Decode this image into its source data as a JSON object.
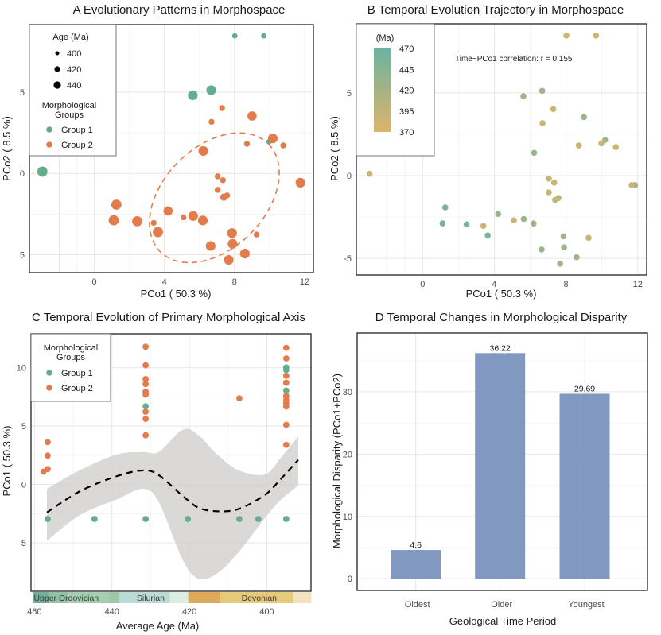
{
  "colors": {
    "group1": "#66ad8f",
    "group2": "#e27c4c",
    "bar": "#7a92bd",
    "age_high": "#6cb3a0",
    "age_low": "#dcb56b",
    "ribbon": "#cfcccb"
  },
  "chart_data": [
    {
      "panel": "A",
      "type": "scatter",
      "title": "A   Evolutionary Patterns in Morphospace",
      "xlabel": "PCo1 ( 50.3 %)",
      "ylabel": "PCo2 ( 8.5 %)",
      "xlim": [
        -3.7,
        12.5
      ],
      "ylim": [
        -6.1,
        9.15
      ],
      "xticks": [
        0,
        4,
        8,
        12
      ],
      "xtick_labels": [
        "0",
        "4",
        "8",
        "12"
      ],
      "yticks": [
        5,
        0,
        -5
      ],
      "ytick_labels": [
        "5",
        "0",
        "5"
      ],
      "grid": true,
      "legend": {
        "position": "top-left",
        "size_title": "Age (Ma)",
        "size_entries": [
          {
            "age": 400,
            "label": "400"
          },
          {
            "age": 420,
            "label": "420"
          },
          {
            "age": 440,
            "label": "440"
          }
        ],
        "group_title_line1": "Morphological",
        "group_title_line2": "Groups",
        "groups": [
          "Group 1",
          "Group 2"
        ]
      },
      "ellipse": {
        "group": "Group 2",
        "style": "dashed"
      },
      "points": [
        {
          "x": 8.02,
          "y": 8.46,
          "group": "Group 1",
          "age": 395
        },
        {
          "x": 9.67,
          "y": 8.46,
          "group": "Group 1",
          "age": 395
        },
        {
          "x": 5.62,
          "y": 4.8,
          "group": "Group 1",
          "age": 440
        },
        {
          "x": 6.67,
          "y": 5.12,
          "group": "Group 1",
          "age": 440
        },
        {
          "x": 9.97,
          "y": 1.95,
          "group": "Group 1",
          "age": 395
        },
        {
          "x": -2.96,
          "y": 0.11,
          "group": "Group 1",
          "age": 445
        },
        {
          "x": 7.29,
          "y": 4.02,
          "group": "Group 2",
          "age": 400
        },
        {
          "x": 9.0,
          "y": 3.53,
          "group": "Group 2",
          "age": 435
        },
        {
          "x": 6.69,
          "y": 3.17,
          "group": "Group 2",
          "age": 400
        },
        {
          "x": 10.18,
          "y": 2.15,
          "group": "Group 2",
          "age": 440
        },
        {
          "x": 8.71,
          "y": 1.82,
          "group": "Group 2",
          "age": 400
        },
        {
          "x": 10.78,
          "y": 1.72,
          "group": "Group 2",
          "age": 400
        },
        {
          "x": 6.22,
          "y": 1.38,
          "group": "Group 2",
          "age": 440
        },
        {
          "x": 7.04,
          "y": -0.18,
          "group": "Group 2",
          "age": 400
        },
        {
          "x": 7.34,
          "y": -0.42,
          "group": "Group 2",
          "age": 400
        },
        {
          "x": 7.04,
          "y": -1.01,
          "group": "Group 2",
          "age": 400
        },
        {
          "x": 7.39,
          "y": -1.46,
          "group": "Group 2",
          "age": 415
        },
        {
          "x": 7.58,
          "y": -1.35,
          "group": "Group 2",
          "age": 400
        },
        {
          "x": 11.76,
          "y": -0.57,
          "group": "Group 2",
          "age": 440
        },
        {
          "x": 1.26,
          "y": -1.92,
          "group": "Group 2",
          "age": 445
        },
        {
          "x": 1.11,
          "y": -2.88,
          "group": "Group 2",
          "age": 445
        },
        {
          "x": 2.45,
          "y": -2.94,
          "group": "Group 2",
          "age": 445
        },
        {
          "x": 3.39,
          "y": -3.04,
          "group": "Group 2",
          "age": 400
        },
        {
          "x": 3.63,
          "y": -3.61,
          "group": "Group 2",
          "age": 445
        },
        {
          "x": 4.21,
          "y": -2.31,
          "group": "Group 2",
          "age": 435
        },
        {
          "x": 5.09,
          "y": -2.7,
          "group": "Group 2",
          "age": 400
        },
        {
          "x": 5.64,
          "y": -2.62,
          "group": "Group 2",
          "age": 440
        },
        {
          "x": 6.19,
          "y": -2.89,
          "group": "Group 2",
          "age": 440
        },
        {
          "x": 7.86,
          "y": -3.67,
          "group": "Group 2",
          "age": 440
        },
        {
          "x": 9.26,
          "y": -3.76,
          "group": "Group 2",
          "age": 400
        },
        {
          "x": 7.89,
          "y": -4.33,
          "group": "Group 2",
          "age": 440
        },
        {
          "x": 6.64,
          "y": -4.46,
          "group": "Group 2",
          "age": 440
        },
        {
          "x": 8.59,
          "y": -4.93,
          "group": "Group 2",
          "age": 440
        },
        {
          "x": 7.67,
          "y": -5.32,
          "group": "Group 2",
          "age": 440
        }
      ]
    },
    {
      "panel": "B",
      "type": "scatter",
      "title": "B   Temporal Evolution Trajectory in Morphospace",
      "xlabel": "PCo1 ( 50.3 %)",
      "ylabel": "PCo2 ( 8.5 %)",
      "xlim": [
        -3.7,
        12.5
      ],
      "ylim": [
        -6.0,
        9.17
      ],
      "xticks": [
        0,
        4,
        8,
        12
      ],
      "xtick_labels": [
        "0",
        "4",
        "8",
        "12"
      ],
      "yticks": [
        5,
        0,
        -5
      ],
      "ytick_labels": [
        "5",
        "0",
        "-5"
      ],
      "grid": true,
      "annotation": "Time−PCo1 correlation: r = 0.155",
      "legend": {
        "position": "top-left",
        "title": "(Ma)",
        "ticks": [
          "470",
          "445",
          "420",
          "395",
          "370"
        ],
        "range": [
          370,
          470
        ]
      },
      "points": [
        {
          "x": 8.02,
          "y": 8.46,
          "age": 380
        },
        {
          "x": 9.67,
          "y": 8.46,
          "age": 380
        },
        {
          "x": 5.62,
          "y": 4.8,
          "age": 428
        },
        {
          "x": 6.67,
          "y": 5.12,
          "age": 428
        },
        {
          "x": 7.29,
          "y": 4.02,
          "age": 385
        },
        {
          "x": 9.0,
          "y": 3.53,
          "age": 428
        },
        {
          "x": 6.69,
          "y": 3.17,
          "age": 385
        },
        {
          "x": 10.18,
          "y": 2.15,
          "age": 428
        },
        {
          "x": 9.97,
          "y": 1.95,
          "age": 385
        },
        {
          "x": 8.71,
          "y": 1.82,
          "age": 385
        },
        {
          "x": 10.78,
          "y": 1.72,
          "age": 385
        },
        {
          "x": 6.22,
          "y": 1.38,
          "age": 430
        },
        {
          "x": 7.04,
          "y": -0.18,
          "age": 390
        },
        {
          "x": 7.34,
          "y": -0.42,
          "age": 390
        },
        {
          "x": 7.04,
          "y": -1.01,
          "age": 390
        },
        {
          "x": 7.39,
          "y": -1.46,
          "age": 395
        },
        {
          "x": 7.58,
          "y": -1.35,
          "age": 395
        },
        {
          "x": 11.85,
          "y": -0.57,
          "age": 420
        },
        {
          "x": 11.66,
          "y": -0.57,
          "age": 390
        },
        {
          "x": -2.96,
          "y": 0.11,
          "age": 385
        },
        {
          "x": 1.26,
          "y": -1.92,
          "age": 455
        },
        {
          "x": 1.11,
          "y": -2.88,
          "age": 458
        },
        {
          "x": 2.45,
          "y": -2.94,
          "age": 455
        },
        {
          "x": 3.39,
          "y": -3.04,
          "age": 385
        },
        {
          "x": 3.63,
          "y": -3.61,
          "age": 458
        },
        {
          "x": 4.21,
          "y": -2.31,
          "age": 432
        },
        {
          "x": 5.09,
          "y": -2.7,
          "age": 390
        },
        {
          "x": 5.64,
          "y": -2.62,
          "age": 428
        },
        {
          "x": 6.19,
          "y": -2.89,
          "age": 428
        },
        {
          "x": 7.86,
          "y": -3.67,
          "age": 425
        },
        {
          "x": 9.26,
          "y": -3.76,
          "age": 385
        },
        {
          "x": 7.89,
          "y": -4.33,
          "age": 425
        },
        {
          "x": 6.64,
          "y": -4.46,
          "age": 428
        },
        {
          "x": 8.59,
          "y": -4.93,
          "age": 428
        },
        {
          "x": 7.67,
          "y": -5.32,
          "age": 428
        }
      ]
    },
    {
      "panel": "C",
      "type": "scatter",
      "title": "C   Temporal Evolution of Primary Morphological Axis",
      "xlabel": "Average Age (Ma)",
      "ylabel": "PCo1 ( 50.3 %)",
      "xlim": [
        460.9,
        388.6
      ],
      "ylim": [
        -9.15,
        12.9
      ],
      "xticks": [
        460,
        440,
        420,
        400
      ],
      "xtick_labels": [
        "460",
        "440",
        "420",
        "400"
      ],
      "yticks": [
        10,
        5,
        0,
        -5
      ],
      "ytick_labels": [
        "10",
        "5",
        "0",
        "5"
      ],
      "grid": true,
      "legend": {
        "position": "top-left",
        "title_line1": "Morphological",
        "title_line2": "Groups",
        "groups": [
          "Group 1",
          "Group 2"
        ]
      },
      "group1": [
        [
          456.6,
          -2.96
        ],
        [
          444.5,
          -2.96
        ],
        [
          431.3,
          -2.96
        ],
        [
          431.3,
          6.7
        ],
        [
          420.4,
          -2.96
        ],
        [
          407.1,
          -2.96
        ],
        [
          402.2,
          -2.96
        ],
        [
          395.0,
          -2.96
        ],
        [
          395.0,
          8.03
        ],
        [
          395.0,
          9.8
        ],
        [
          395.0,
          10.02
        ]
      ],
      "group2": [
        [
          457.7,
          1.09
        ],
        [
          456.6,
          1.31
        ],
        [
          456.6,
          2.47
        ],
        [
          456.6,
          3.62
        ],
        [
          431.3,
          11.79
        ],
        [
          431.3,
          10.2
        ],
        [
          431.3,
          9.03
        ],
        [
          431.3,
          8.6
        ],
        [
          431.3,
          7.94
        ],
        [
          431.3,
          7.69
        ],
        [
          431.3,
          6.22
        ],
        [
          431.3,
          5.61
        ],
        [
          431.3,
          4.21
        ],
        [
          407.1,
          7.38
        ],
        [
          395.0,
          11.7
        ],
        [
          395.0,
          10.79
        ],
        [
          395.0,
          9.3
        ],
        [
          395.0,
          8.71
        ],
        [
          395.0,
          7.58
        ],
        [
          395.0,
          7.26
        ],
        [
          395.0,
          6.95
        ],
        [
          395.0,
          6.67
        ],
        [
          395.0,
          5.11
        ],
        [
          395.0,
          3.39
        ]
      ],
      "smooth": {
        "style": "dashed",
        "x": [
          456.8,
          448.4,
          438.8,
          432.0,
          427.9,
          421.7,
          417.6,
          412.8,
          407.3,
          400.5,
          396.3,
          391.9
        ],
        "y": [
          -2.4,
          -0.61,
          0.7,
          1.2,
          0.8,
          -1.0,
          -2.0,
          -2.3,
          -2.1,
          -0.9,
          0.5,
          2.1
        ],
        "upper": [
          -0.38,
          1.2,
          2.56,
          2.78,
          2.78,
          4.7,
          4.2,
          2.56,
          1.2,
          0.86,
          2.33,
          4.14
        ],
        "lower": [
          -4.84,
          -2.65,
          -1.29,
          -0.38,
          -1.52,
          -6.49,
          -8.08,
          -7.62,
          -5.81,
          -2.87,
          -1.29,
          -0.11
        ]
      },
      "periods": [
        {
          "label": "Upper Ordovician",
          "label_at": 451.8,
          "segments": [
            {
              "from": 460.4,
              "to": 456.4,
              "color": "#6fae97"
            },
            {
              "from": 456.4,
              "to": 451.2,
              "color": "#8ec4a2"
            },
            {
              "from": 451.2,
              "to": 440.9,
              "color": "#a5cfb1"
            },
            {
              "from": 440.9,
              "to": 438.3,
              "color": "#9cc8a8"
            }
          ]
        },
        {
          "label": "Silurian",
          "label_at": 430.0,
          "segments": [
            {
              "from": 438.3,
              "to": 425.0,
              "color": "#b9dcd4"
            },
            {
              "from": 425.0,
              "to": 420.3,
              "color": "#dcede2"
            }
          ]
        },
        {
          "label": "Devonian",
          "label_at": 402.0,
          "segments": [
            {
              "from": 420.3,
              "to": 412.0,
              "color": "#dfa95c"
            },
            {
              "from": 412.0,
              "to": 393.3,
              "color": "#e6c97a"
            },
            {
              "from": 393.3,
              "to": 388.5,
              "color": "#f4e4bd"
            }
          ]
        }
      ]
    },
    {
      "panel": "D",
      "type": "bar",
      "title": "D   Temporal Changes in Morphological Disparity",
      "xlabel": "Geological Time Period",
      "ylabel": "Morphological Disparity (PCo1+PCo2)",
      "categories": [
        "Oldest",
        "Older",
        "Youngest"
      ],
      "values": [
        4.6,
        36.22,
        29.69
      ],
      "value_labels": [
        "4.6",
        "36.22",
        "29.69"
      ],
      "ylim": [
        -1.9,
        39.45
      ],
      "yticks": [
        0,
        10,
        20,
        30
      ],
      "ytick_labels": [
        "0",
        "10",
        "20",
        "30"
      ],
      "grid": true
    }
  ]
}
